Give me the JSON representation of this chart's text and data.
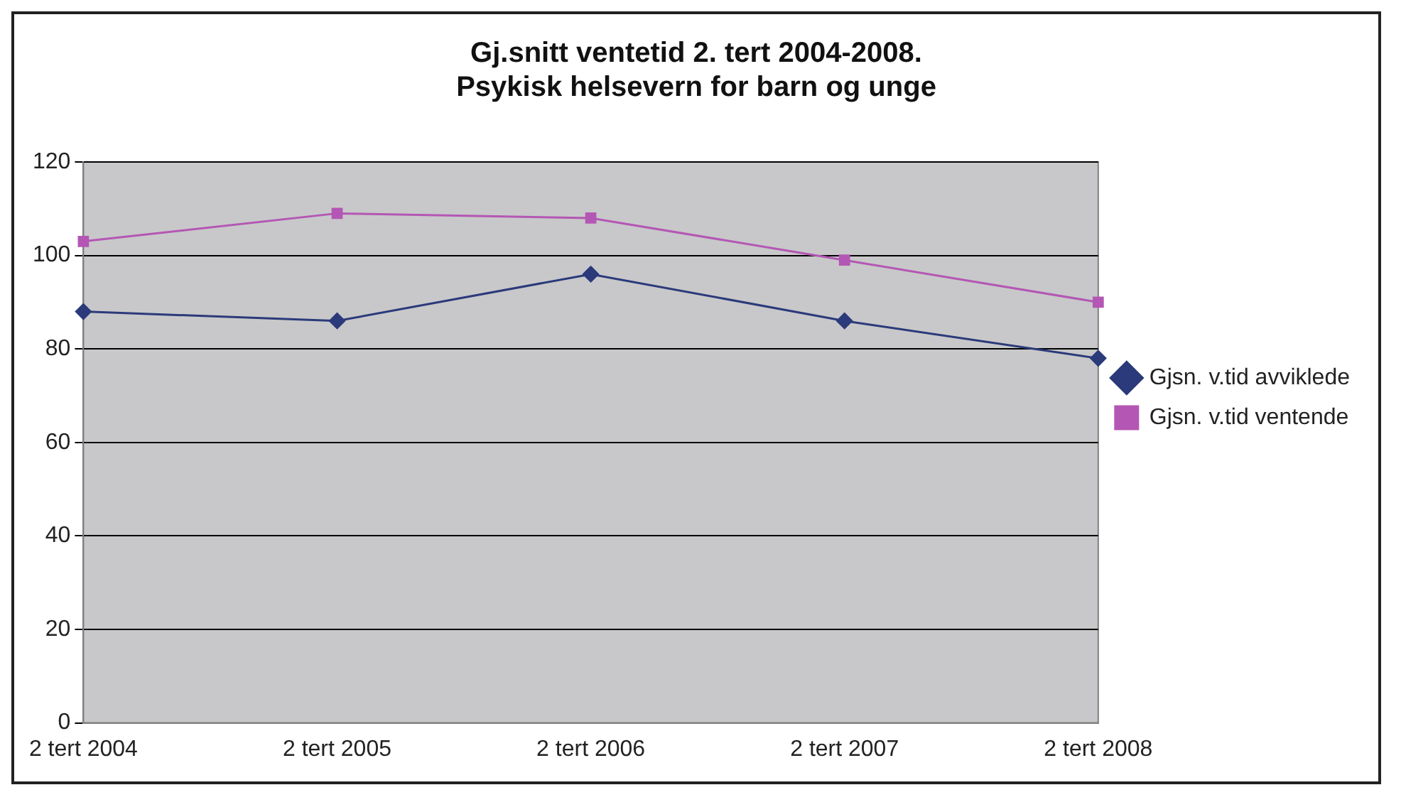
{
  "chart_data": {
    "type": "line",
    "title": [
      "Gj.snitt ventetid 2. tert 2004-2008.",
      "Psykisk helsevern for barn og unge"
    ],
    "categories": [
      "2 tert 2004",
      "2 tert 2005",
      "2 tert 2006",
      "2 tert 2007",
      "2 tert 2008"
    ],
    "series": [
      {
        "name": "Gjsn. v.tid avviklede",
        "color": "#2b3a7a",
        "marker": "diamond",
        "values": [
          88,
          86,
          96,
          86,
          78
        ]
      },
      {
        "name": "Gjsn. v.tid ventende",
        "color": "#b457b4",
        "marker": "square",
        "values": [
          103,
          109,
          108,
          99,
          90
        ]
      }
    ],
    "ylim": [
      0,
      120
    ],
    "yticks": [
      0,
      20,
      40,
      60,
      80,
      100,
      120
    ],
    "grid": "y",
    "legend": "right"
  }
}
